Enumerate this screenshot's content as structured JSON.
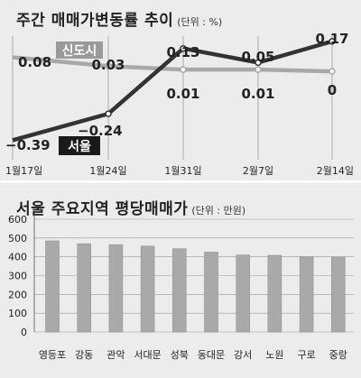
{
  "weekly": {
    "title": "주간 매매가변동률 추이",
    "unit": "(단위 : %)"
  },
  "regional": {
    "title": "서울 주요지역 평당매매가",
    "unit": "(단위 : 만원)"
  },
  "colors": {
    "seoul": "#333333",
    "sindosi": "#a8a8a8",
    "bar": "#a9a9a9",
    "panel": "#ececec",
    "seoul_label_bg": "#1a1a1a",
    "sindosi_label_bg": "#9a9a9a"
  },
  "chart_data": [
    {
      "type": "line",
      "x": [
        "1월17일",
        "1월24일",
        "1월31일",
        "2월7일",
        "2월14일"
      ],
      "series": [
        {
          "name": "서울",
          "values": [
            -0.39,
            -0.24,
            0.13,
            0.05,
            0.17
          ],
          "labels": [
            "−0.39",
            "−0.24",
            "0.13",
            "0.05",
            "0.17"
          ]
        },
        {
          "name": "신도시",
          "values": [
            0.08,
            0.03,
            0.01,
            0.01,
            0
          ],
          "labels": [
            "0.08",
            "0.03",
            "0.01",
            "0.01",
            "0"
          ]
        }
      ],
      "title": "주간 매매가변동률 추이",
      "ylim": [
        -0.5,
        0.2
      ],
      "grid": "vertical",
      "legend": "inline-labels"
    },
    {
      "type": "bar",
      "categories": [
        "영등포",
        "강동",
        "관악",
        "서대문",
        "성북",
        "동대문",
        "강서",
        "노원",
        "구로",
        "중랑"
      ],
      "values": [
        485,
        470,
        465,
        457,
        443,
        425,
        410,
        408,
        401,
        400
      ],
      "yticks": [
        "0",
        "100",
        "200",
        "300",
        "400",
        "500",
        "600"
      ],
      "title": "서울 주요지역 평당매매가",
      "ylim": [
        0,
        600
      ],
      "grid": "horizontal"
    }
  ]
}
